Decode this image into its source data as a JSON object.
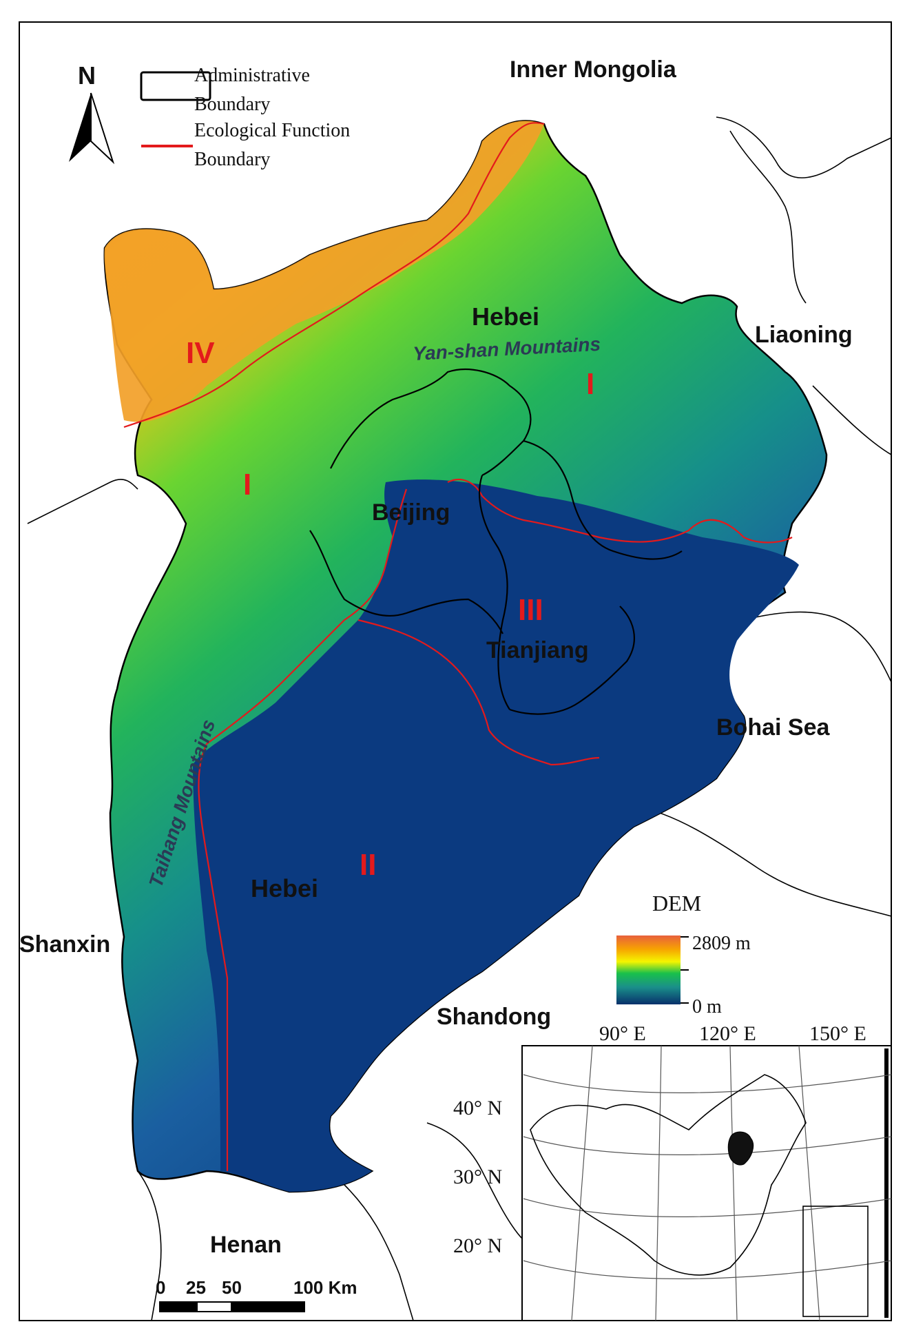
{
  "legend": {
    "north": "N",
    "admin_line1": "Administrative",
    "admin_line2": "Boundary",
    "eco_line1": "Ecological Function",
    "eco_line2": "Boundary"
  },
  "regions": {
    "inner_mongolia": "Inner Mongolia",
    "liaoning": "Liaoning",
    "hebei_north": "Hebei",
    "beijing": "Beijing",
    "tianjiang": "Tianjiang",
    "bohai": "Bohai Sea",
    "hebei_south": "Hebei",
    "shanxin": "Shanxin",
    "shandong": "Shandong",
    "henan": "Henan"
  },
  "mountains": {
    "yanshan": "Yan-shan Mountains",
    "taihang": "Taihang Mountains"
  },
  "zones": {
    "iv": "IV",
    "i_north": "I",
    "i_west": "I",
    "iii": "III",
    "ii": "II"
  },
  "dem_legend": {
    "title": "DEM",
    "max": "2809 m",
    "min": "0 m",
    "colors": [
      "#08306b",
      "#1a6fa8",
      "#19b36b",
      "#55d13b",
      "#f5f500",
      "#f7a400",
      "#e8603c"
    ]
  },
  "scale_bar": {
    "ticks": [
      "0",
      "25",
      "50",
      "100 Km"
    ]
  },
  "inset": {
    "lon_labels": [
      "90° E",
      "120° E",
      "150° E"
    ],
    "lat_labels": [
      "40° N",
      "30° N",
      "20° N"
    ]
  },
  "colors": {
    "admin_boundary": "#000000",
    "eco_boundary": "#e31a1c",
    "lowland": "#0b3a80"
  }
}
